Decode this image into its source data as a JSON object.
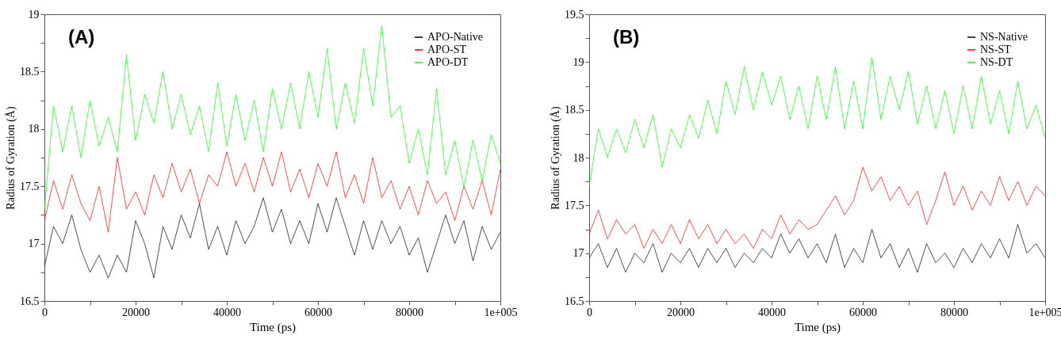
{
  "chart_data": [
    {
      "type": "line",
      "title": "(A)",
      "xlabel": "Time (ps)",
      "ylabel": "Radius of Gyration (Å)",
      "legend": "top right",
      "grid": false,
      "xlim": [
        0,
        100000
      ],
      "ylim": [
        16.5,
        19
      ],
      "xticks": [
        0,
        {
          "value": 10000,
          "label": null
        },
        20000,
        {
          "value": 30000,
          "label": null
        },
        40000,
        {
          "value": 50000,
          "label": null
        },
        60000,
        {
          "value": 70000,
          "label": null
        },
        80000,
        {
          "value": 90000,
          "label": null
        },
        {
          "value": 100000,
          "label": "1e+005"
        }
      ],
      "yticks": [
        16.5,
        {
          "value": 16.75,
          "label": null
        },
        17,
        {
          "value": 17.25,
          "label": null
        },
        17.5,
        {
          "value": 17.75,
          "label": null
        },
        18,
        {
          "value": 18.25,
          "label": null
        },
        18.5,
        {
          "value": 18.75,
          "label": null
        },
        19
      ],
      "x": [
        0,
        2000,
        4000,
        6000,
        8000,
        10000,
        12000,
        14000,
        16000,
        18000,
        20000,
        22000,
        24000,
        26000,
        28000,
        30000,
        32000,
        34000,
        36000,
        38000,
        40000,
        42000,
        44000,
        46000,
        48000,
        50000,
        52000,
        54000,
        56000,
        58000,
        60000,
        62000,
        64000,
        66000,
        68000,
        70000,
        72000,
        74000,
        76000,
        78000,
        80000,
        82000,
        84000,
        86000,
        88000,
        90000,
        92000,
        94000,
        96000,
        98000,
        100000
      ],
      "series": [
        {
          "name": "APO-Native",
          "color": "#000000",
          "values": [
            16.8,
            17.15,
            17.0,
            17.25,
            16.95,
            16.75,
            16.9,
            16.7,
            16.9,
            16.75,
            17.2,
            17.0,
            16.7,
            17.15,
            16.95,
            17.25,
            17.05,
            17.35,
            16.95,
            17.15,
            16.9,
            17.2,
            17.0,
            17.15,
            17.4,
            17.1,
            17.3,
            17.0,
            17.2,
            17.0,
            17.35,
            17.1,
            17.4,
            17.15,
            16.9,
            17.2,
            16.95,
            17.2,
            17.0,
            17.15,
            16.9,
            17.05,
            16.75,
            17.0,
            17.25,
            17.0,
            17.2,
            16.85,
            17.15,
            16.95,
            17.1
          ]
        },
        {
          "name": "APO-ST",
          "color": "#ff0000",
          "values": [
            17.2,
            17.55,
            17.3,
            17.6,
            17.35,
            17.2,
            17.5,
            17.1,
            17.75,
            17.3,
            17.45,
            17.25,
            17.6,
            17.4,
            17.7,
            17.45,
            17.65,
            17.35,
            17.6,
            17.5,
            17.8,
            17.5,
            17.7,
            17.45,
            17.75,
            17.5,
            17.8,
            17.45,
            17.65,
            17.4,
            17.7,
            17.5,
            17.8,
            17.4,
            17.6,
            17.35,
            17.75,
            17.4,
            17.55,
            17.3,
            17.5,
            17.25,
            17.55,
            17.35,
            17.45,
            17.2,
            17.5,
            17.3,
            17.55,
            17.25,
            17.65
          ]
        },
        {
          "name": "APO-DT",
          "color": "#00ff00",
          "values": [
            17.3,
            18.2,
            17.8,
            18.2,
            17.75,
            18.25,
            17.85,
            18.1,
            17.8,
            18.65,
            17.9,
            18.3,
            18.05,
            18.5,
            18.0,
            18.3,
            17.95,
            18.2,
            17.8,
            18.4,
            17.85,
            18.3,
            17.9,
            18.25,
            17.8,
            18.35,
            18.0,
            18.4,
            18.0,
            18.5,
            18.1,
            18.7,
            18.0,
            18.4,
            18.05,
            18.7,
            18.2,
            18.9,
            18.1,
            18.2,
            17.7,
            18.0,
            17.6,
            18.35,
            17.6,
            17.9,
            17.5,
            17.9,
            17.55,
            17.95,
            17.7
          ]
        }
      ]
    },
    {
      "type": "line",
      "title": "(B)",
      "xlabel": "Time (ps)",
      "ylabel": "Radius of Gyration (Å)",
      "legend": "top right",
      "grid": false,
      "xlim": [
        0,
        100000
      ],
      "ylim": [
        16.5,
        19.5
      ],
      "xticks": [
        0,
        {
          "value": 10000,
          "label": null
        },
        20000,
        {
          "value": 30000,
          "label": null
        },
        40000,
        {
          "value": 50000,
          "label": null
        },
        60000,
        {
          "value": 70000,
          "label": null
        },
        80000,
        {
          "value": 90000,
          "label": null
        },
        {
          "value": 100000,
          "label": "1e+005"
        }
      ],
      "yticks": [
        16.5,
        {
          "value": 16.75,
          "label": null
        },
        17,
        {
          "value": 17.25,
          "label": null
        },
        17.5,
        {
          "value": 17.75,
          "label": null
        },
        18,
        {
          "value": 18.25,
          "label": null
        },
        18.5,
        {
          "value": 18.75,
          "label": null
        },
        19,
        {
          "value": 19.25,
          "label": null
        },
        19.5
      ],
      "x": [
        0,
        2000,
        4000,
        6000,
        8000,
        10000,
        12000,
        14000,
        16000,
        18000,
        20000,
        22000,
        24000,
        26000,
        28000,
        30000,
        32000,
        34000,
        36000,
        38000,
        40000,
        42000,
        44000,
        46000,
        48000,
        50000,
        52000,
        54000,
        56000,
        58000,
        60000,
        62000,
        64000,
        66000,
        68000,
        70000,
        72000,
        74000,
        76000,
        78000,
        80000,
        82000,
        84000,
        86000,
        88000,
        90000,
        92000,
        94000,
        96000,
        98000,
        100000
      ],
      "series": [
        {
          "name": "NS-Native",
          "color": "#000000",
          "values": [
            16.95,
            17.1,
            16.85,
            17.05,
            16.8,
            17.0,
            16.9,
            17.1,
            16.8,
            17.0,
            16.9,
            17.05,
            16.85,
            17.05,
            16.9,
            17.05,
            16.85,
            17.0,
            16.9,
            17.05,
            16.95,
            17.2,
            17.0,
            17.15,
            16.95,
            17.1,
            16.9,
            17.2,
            16.85,
            17.05,
            16.9,
            17.25,
            16.95,
            17.1,
            16.85,
            17.05,
            16.8,
            17.1,
            16.9,
            17.0,
            16.85,
            17.05,
            16.9,
            17.1,
            16.95,
            17.15,
            16.95,
            17.3,
            17.0,
            17.1,
            16.95
          ]
        },
        {
          "name": "NS-ST",
          "color": "#ff0000",
          "values": [
            17.2,
            17.45,
            17.15,
            17.35,
            17.2,
            17.3,
            17.05,
            17.25,
            17.1,
            17.3,
            17.1,
            17.35,
            17.15,
            17.3,
            17.1,
            17.25,
            17.1,
            17.2,
            17.05,
            17.25,
            17.15,
            17.4,
            17.2,
            17.35,
            17.25,
            17.3,
            17.45,
            17.6,
            17.4,
            17.55,
            17.9,
            17.65,
            17.8,
            17.55,
            17.7,
            17.5,
            17.65,
            17.3,
            17.55,
            17.85,
            17.5,
            17.7,
            17.45,
            17.65,
            17.5,
            17.8,
            17.55,
            17.75,
            17.5,
            17.7,
            17.6
          ]
        },
        {
          "name": "NS-DT",
          "color": "#00ff00",
          "values": [
            17.7,
            18.3,
            18.0,
            18.3,
            18.05,
            18.4,
            18.1,
            18.45,
            17.9,
            18.3,
            18.1,
            18.45,
            18.2,
            18.6,
            18.25,
            18.8,
            18.45,
            18.95,
            18.5,
            18.9,
            18.55,
            18.85,
            18.4,
            18.75,
            18.3,
            18.85,
            18.4,
            18.95,
            18.3,
            18.8,
            18.3,
            19.05,
            18.4,
            18.85,
            18.5,
            18.9,
            18.35,
            18.75,
            18.3,
            18.7,
            18.25,
            18.75,
            18.3,
            18.85,
            18.35,
            18.7,
            18.25,
            18.8,
            18.3,
            18.55,
            18.2
          ]
        }
      ]
    }
  ]
}
